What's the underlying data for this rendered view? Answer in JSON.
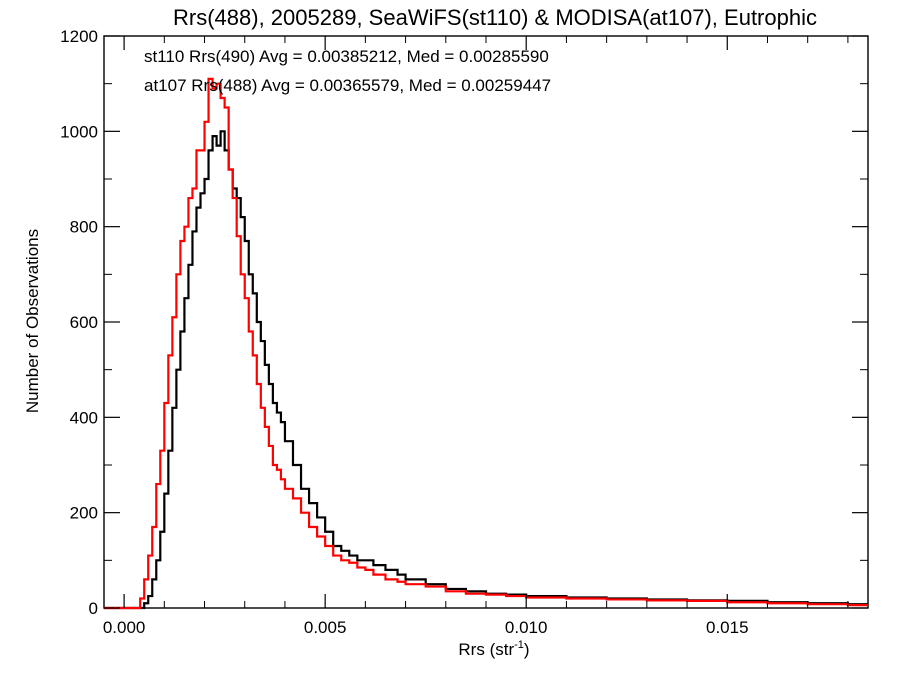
{
  "chart_data": {
    "type": "line",
    "title": "Rrs(488), 2005289, SeaWiFS(st110) & MODISA(at107), Eutrophic",
    "xlabel": "Rrs (str",
    "xlabel_sup": "-1",
    "xlabel_close": ")",
    "ylabel": "Number of Observations",
    "xlim": [
      -0.0005,
      0.0185
    ],
    "ylim": [
      0,
      1200
    ],
    "xticks": [
      0.0,
      0.005,
      0.01,
      0.015
    ],
    "xtick_labels": [
      "0.000",
      "0.005",
      "0.010",
      "0.015"
    ],
    "yticks": [
      0,
      200,
      400,
      600,
      800,
      1000,
      1200
    ],
    "ytick_labels": [
      "0",
      "200",
      "400",
      "600",
      "800",
      "1000",
      "1200"
    ],
    "step": "histogram",
    "series": [
      {
        "name": "st110 Rrs(490) Avg = 0.00385212, Med = 0.00285590",
        "color": "#000000",
        "x": [
          -0.0005,
          0.0,
          0.0003,
          0.0004,
          0.0005,
          0.0006,
          0.0007,
          0.0008,
          0.0009,
          0.001,
          0.0011,
          0.0012,
          0.0013,
          0.0014,
          0.0015,
          0.0016,
          0.0017,
          0.0018,
          0.0019,
          0.002,
          0.0021,
          0.0022,
          0.0023,
          0.0024,
          0.0025,
          0.0026,
          0.0027,
          0.0028,
          0.0029,
          0.003,
          0.0031,
          0.0032,
          0.0033,
          0.0034,
          0.0035,
          0.0036,
          0.0037,
          0.0038,
          0.0039,
          0.004,
          0.0042,
          0.0044,
          0.0046,
          0.0048,
          0.005,
          0.0052,
          0.0054,
          0.0056,
          0.0058,
          0.006,
          0.0062,
          0.0065,
          0.0068,
          0.007,
          0.0075,
          0.008,
          0.0085,
          0.009,
          0.0095,
          0.01,
          0.011,
          0.012,
          0.013,
          0.014,
          0.015,
          0.016,
          0.017,
          0.018,
          0.0185
        ],
        "y": [
          0,
          0,
          0,
          0,
          10,
          25,
          60,
          100,
          160,
          240,
          330,
          420,
          500,
          580,
          650,
          720,
          790,
          840,
          870,
          900,
          960,
          990,
          970,
          1000,
          960,
          920,
          880,
          860,
          820,
          770,
          700,
          660,
          600,
          560,
          510,
          470,
          430,
          410,
          390,
          350,
          300,
          250,
          220,
          190,
          160,
          130,
          120,
          110,
          100,
          100,
          90,
          80,
          70,
          60,
          50,
          40,
          35,
          30,
          28,
          25,
          22,
          20,
          18,
          16,
          15,
          12,
          10,
          8,
          8
        ]
      },
      {
        "name": "at107 Rrs(488) Avg = 0.00365579, Med = 0.00259447",
        "color": "#ff0000",
        "x": [
          -0.0005,
          0.0,
          0.0003,
          0.0004,
          0.0005,
          0.0006,
          0.0007,
          0.0008,
          0.0009,
          0.001,
          0.0011,
          0.0012,
          0.0013,
          0.0014,
          0.0015,
          0.0016,
          0.0017,
          0.0018,
          0.0019,
          0.002,
          0.0021,
          0.0022,
          0.0023,
          0.0024,
          0.0025,
          0.0026,
          0.0027,
          0.0028,
          0.0029,
          0.003,
          0.0031,
          0.0032,
          0.0033,
          0.0034,
          0.0035,
          0.0036,
          0.0037,
          0.0038,
          0.0039,
          0.004,
          0.0042,
          0.0044,
          0.0046,
          0.0048,
          0.005,
          0.0052,
          0.0054,
          0.0056,
          0.0058,
          0.006,
          0.0062,
          0.0065,
          0.0068,
          0.007,
          0.0075,
          0.008,
          0.0085,
          0.009,
          0.0095,
          0.01,
          0.011,
          0.012,
          0.013,
          0.014,
          0.015,
          0.016,
          0.017,
          0.018,
          0.0185
        ],
        "y": [
          0,
          0,
          0,
          20,
          60,
          110,
          170,
          260,
          330,
          430,
          530,
          610,
          700,
          770,
          800,
          860,
          880,
          960,
          960,
          1020,
          1110,
          1090,
          1100,
          1070,
          1050,
          920,
          860,
          780,
          700,
          650,
          580,
          530,
          470,
          420,
          380,
          340,
          300,
          290,
          270,
          250,
          230,
          200,
          170,
          150,
          130,
          110,
          100,
          95,
          85,
          80,
          70,
          60,
          55,
          50,
          45,
          35,
          30,
          28,
          25,
          22,
          20,
          18,
          16,
          15,
          12,
          10,
          8,
          6,
          6
        ]
      }
    ]
  }
}
